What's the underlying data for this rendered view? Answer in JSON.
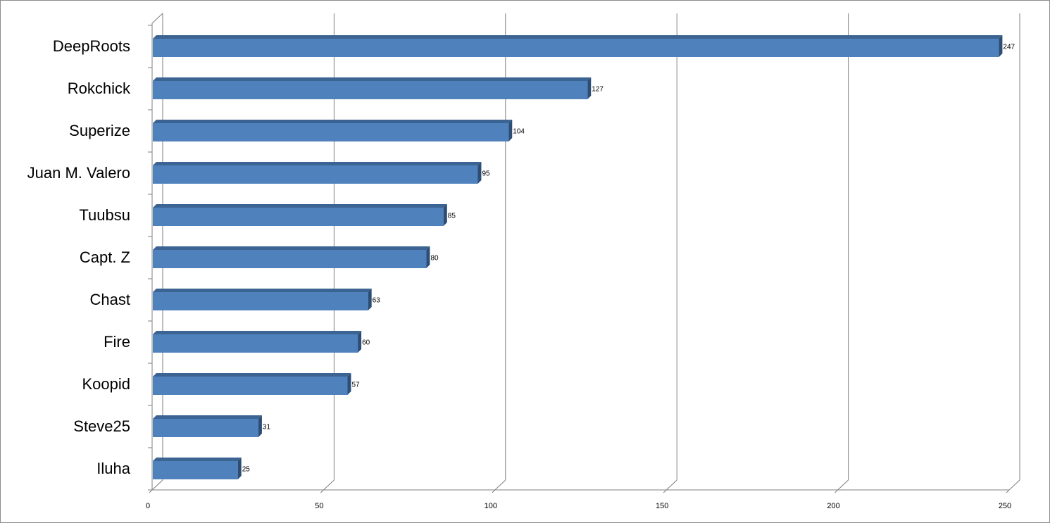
{
  "chart_data": {
    "type": "bar",
    "orientation": "horizontal",
    "style": "3d",
    "categories": [
      "DeepRoots",
      "Rokchick",
      "Superize",
      "Juan M. Valero",
      "Tuubsu",
      "Capt. Z",
      "Chast",
      "Fire",
      "Koopid",
      "Steve25",
      "Iluha"
    ],
    "values": [
      247,
      127,
      104,
      95,
      85,
      80,
      63,
      60,
      57,
      31,
      25
    ],
    "xlim": [
      0,
      250
    ],
    "xticks": [
      0,
      50,
      100,
      150,
      200,
      250
    ],
    "xtick_labels": [
      "0",
      "50",
      "100",
      "150",
      "200",
      "250"
    ],
    "data_labels": [
      "247",
      "127",
      "104",
      "95",
      "85",
      "80",
      "63",
      "60",
      "57",
      "31",
      "25"
    ],
    "grid": "vertical",
    "legend": "none",
    "title": "",
    "xlabel": "",
    "ylabel": "",
    "colors": {
      "bar_front": "#4f81bd",
      "bar_top": "#3c6493",
      "bar_side": "#2c4d75",
      "gridline": "#7f7f7f",
      "axis": "#7f7f7f"
    }
  }
}
